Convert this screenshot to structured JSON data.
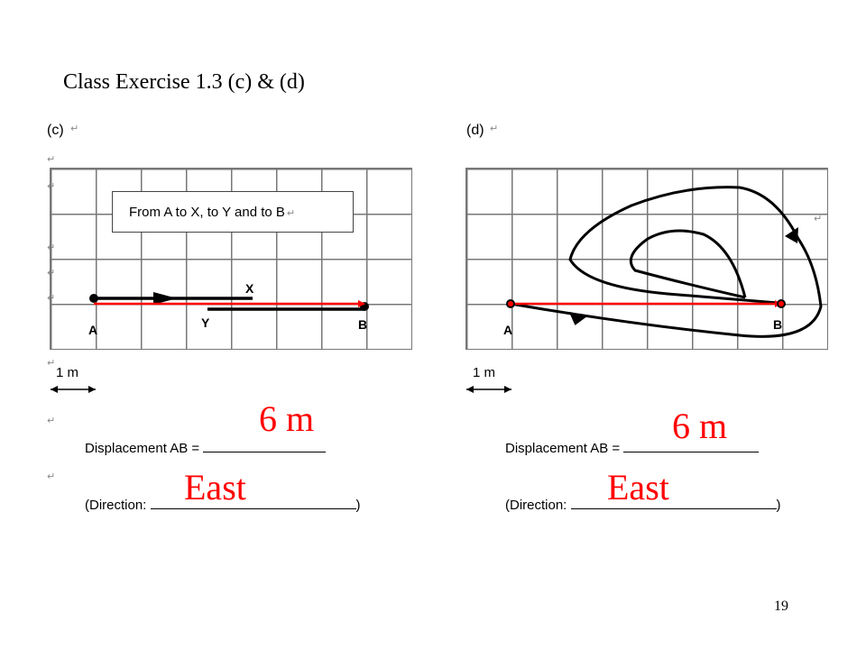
{
  "slide": {
    "title": "Class Exercise 1.3 (c) & (d)",
    "page_number": "19"
  },
  "panel_c": {
    "label": "(c)",
    "note": "From A to X, to Y and to B",
    "point_a": "A",
    "point_b": "B",
    "point_x": "X",
    "point_y": "Y",
    "scale": "1 m",
    "displacement_label": "Displacement AB =",
    "direction_label": "(Direction:",
    "direction_close": ")",
    "answer_displacement": "6 m",
    "answer_direction": "East"
  },
  "panel_d": {
    "label": "(d)",
    "point_a": "A",
    "point_b": "B",
    "scale": "1 m",
    "displacement_label": "Displacement AB =",
    "direction_label": "(Direction:",
    "direction_close": ")",
    "answer_displacement": "6 m",
    "answer_direction": "East"
  },
  "colors": {
    "answer": "#ff0000",
    "path": "#000000",
    "grid": "#777777"
  }
}
